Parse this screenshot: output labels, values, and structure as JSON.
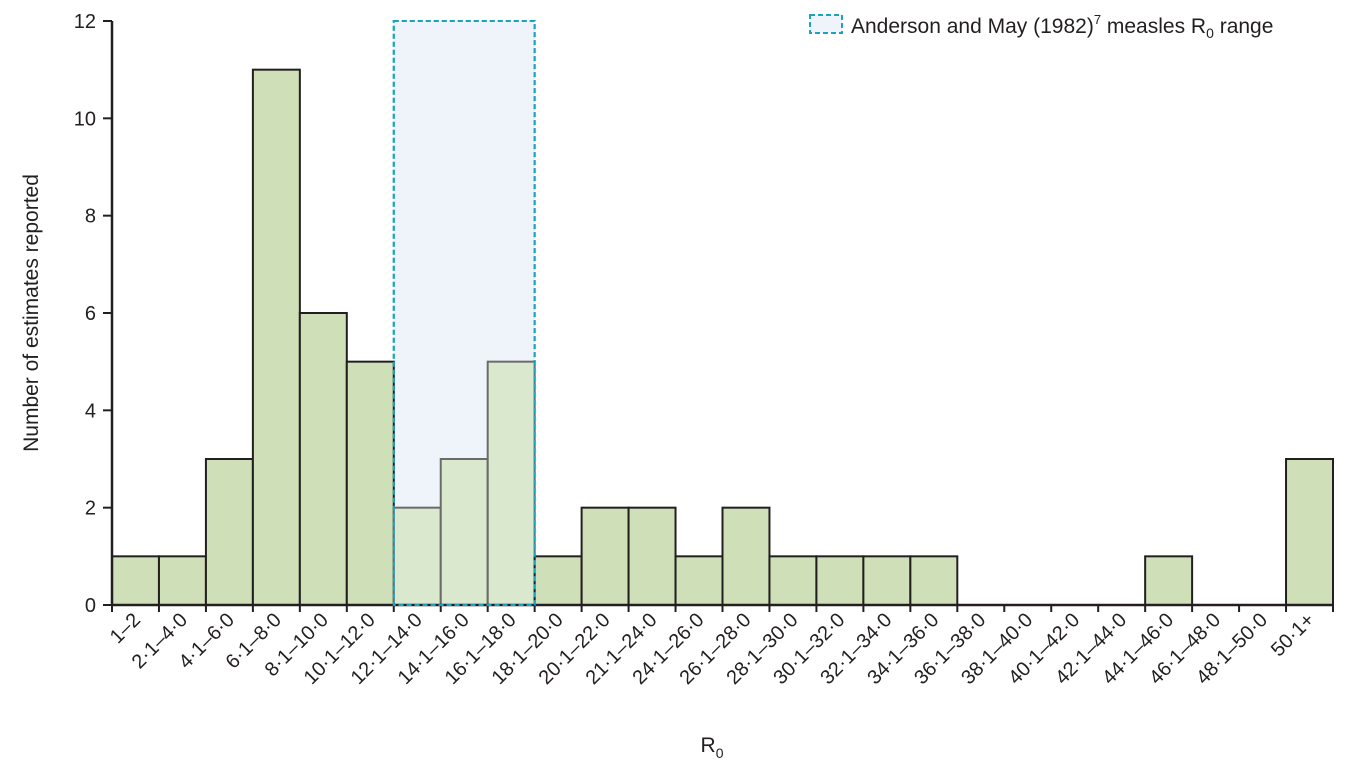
{
  "chart_data": {
    "type": "bar",
    "xlabel": "R",
    "xlabel_subscript": "0",
    "ylabel": "Number of estimates reported",
    "ylim": [
      0,
      12
    ],
    "yticks": [
      0,
      2,
      4,
      6,
      8,
      10,
      12
    ],
    "categories": [
      "1–2",
      "2·1–4·0",
      "4·1–6·0",
      "6·1–8·0",
      "8·1–10·0",
      "10·1–12·0",
      "12·1–14·0",
      "14·1–16·0",
      "16·1–18·0",
      "18·1–20·0",
      "20·1–22·0",
      "21·1–24·0",
      "24·1–26·0",
      "26·1–28·0",
      "28·1–30·0",
      "30·1–32·0",
      "32·1–34·0",
      "34·1–36·0",
      "36·1–38·0",
      "38·1–40·0",
      "40·1–42·0",
      "42·1–44·0",
      "44·1–46·0",
      "46·1–48·0",
      "48·1–50·0",
      "50·1+"
    ],
    "values": [
      1,
      1,
      3,
      11,
      6,
      5,
      2,
      3,
      5,
      1,
      2,
      2,
      1,
      2,
      1,
      1,
      1,
      1,
      0,
      0,
      0,
      0,
      1,
      0,
      0,
      3
    ],
    "highlight_range": {
      "from_category": "12·1–14·0",
      "to_category": "16·1–18·0",
      "legend": {
        "text_before": "Anderson and May (1982)",
        "superscript": "7",
        "text_after": " measles R",
        "subscript": "0",
        "text_end": " range"
      }
    },
    "grid": false,
    "legend_position": "top-right",
    "colors": {
      "bar_fill": "#cfdfb8",
      "bar_stroke": "#231f20",
      "highlight_fill": "#eef4fa",
      "highlight_stroke": "#1aa3c2",
      "bar_in_highlight_fill": "#d6e5c6",
      "bar_in_highlight_stroke": "#6b6b6b"
    }
  }
}
